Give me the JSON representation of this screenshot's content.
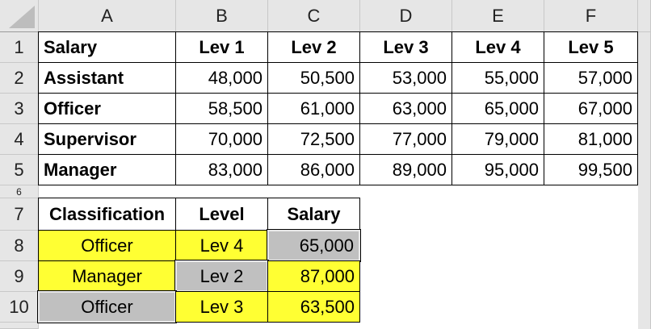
{
  "columns": [
    "A",
    "B",
    "C",
    "D",
    "E",
    "F"
  ],
  "rows": [
    "1",
    "2",
    "3",
    "4",
    "5",
    "6",
    "7",
    "8",
    "9",
    "10"
  ],
  "table1": {
    "header": [
      "Salary",
      "Lev 1",
      "Lev 2",
      "Lev 3",
      "Lev 4",
      "Lev 5"
    ],
    "body": [
      [
        "Assistant",
        "48,000",
        "50,500",
        "53,000",
        "55,000",
        "57,000"
      ],
      [
        "Officer",
        "58,500",
        "61,000",
        "63,000",
        "65,000",
        "67,000"
      ],
      [
        "Supervisor",
        "70,000",
        "72,500",
        "77,000",
        "79,000",
        "81,000"
      ],
      [
        "Manager",
        "83,000",
        "86,000",
        "89,000",
        "95,000",
        "99,500"
      ]
    ]
  },
  "table2": {
    "header": [
      "Classification",
      "Level",
      "Salary"
    ],
    "body": [
      [
        "Officer",
        "Lev 4",
        "65,000"
      ],
      [
        "Manager",
        "Lev 2",
        "87,000"
      ],
      [
        "Officer",
        "Lev 3",
        "63,500"
      ]
    ],
    "fills": [
      [
        "yellow",
        "yellow",
        "gray"
      ],
      [
        "yellow",
        "gray",
        "yellow"
      ],
      [
        "gray",
        "yellow",
        "yellow"
      ]
    ]
  },
  "colors": {
    "yellow": "#ffff33",
    "gray": "#c0c0c0",
    "header_bg": "#e6e6e6"
  }
}
